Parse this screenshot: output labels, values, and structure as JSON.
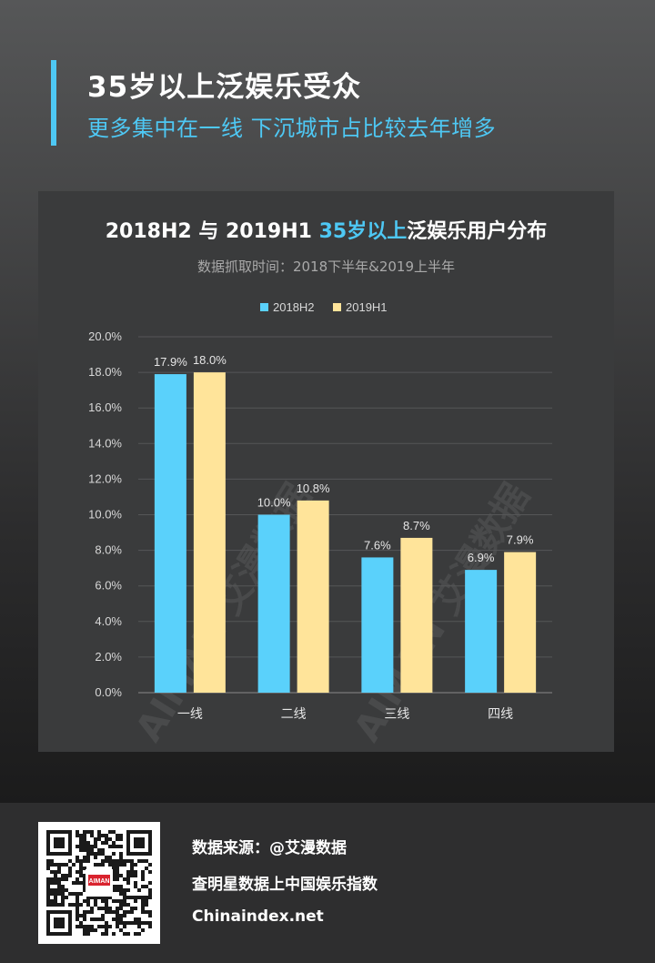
{
  "header": {
    "title": "35岁以上泛娱乐受众",
    "subtitle": "更多集中在一线 下沉城市占比较去年增多"
  },
  "chart": {
    "title_prefix": "2018H2 与 2019H1 ",
    "title_highlight": "35岁以上",
    "title_suffix": "泛娱乐用户分布",
    "subtitle": "数据抓取时间：2018下半年&2019上半年",
    "watermark": "AIMAN 艾漫数据"
  },
  "chart_data": {
    "type": "bar",
    "categories": [
      "一线",
      "二线",
      "三线",
      "四线"
    ],
    "series": [
      {
        "name": "2018H2",
        "values": [
          17.9,
          10.0,
          7.6,
          6.9
        ],
        "labels": [
          "17.9%",
          "10.0%",
          "7.6%",
          "6.9%"
        ],
        "color": "#5ad1fb"
      },
      {
        "name": "2019H1",
        "values": [
          18.0,
          10.8,
          8.7,
          7.9
        ],
        "labels": [
          "18.0%",
          "10.8%",
          "8.7%",
          "7.9%"
        ],
        "color": "#ffe49a"
      }
    ],
    "ylim": [
      0,
      20
    ],
    "yticks": [
      "0.0%",
      "2.0%",
      "4.0%",
      "6.0%",
      "8.0%",
      "10.0%",
      "12.0%",
      "14.0%",
      "16.0%",
      "18.0%",
      "20.0%"
    ],
    "legend_position": "top-center",
    "grid": true
  },
  "footer": {
    "source": "数据来源：@艾漫数据",
    "slogan": "查明星数据上中国娱乐指数",
    "website": "Chinaindex.net",
    "qr_logo": "AIMAN"
  }
}
